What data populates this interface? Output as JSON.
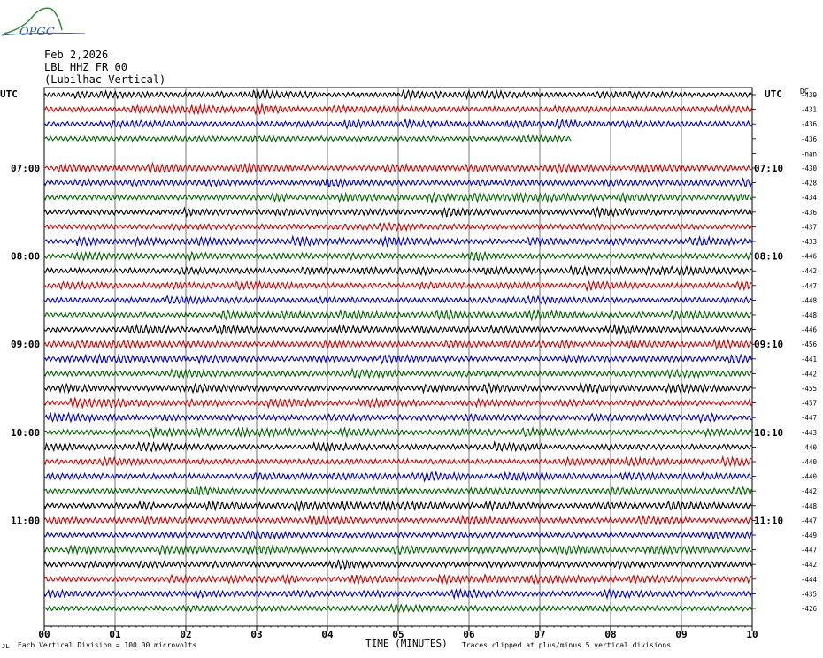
{
  "logo": {
    "text": "OPGC"
  },
  "header": {
    "date": "Feb 2,2026",
    "station": "LBL HHZ FR 00",
    "site": "(Lubilhac Vertical)"
  },
  "left_axis_title": "UTC",
  "right_axis_title": "UTC",
  "dc_header": "DC",
  "chart_data": {
    "type": "line",
    "title": "",
    "xlabel": "TIME (MINUTES)",
    "ylabel": "",
    "x_ticks": [
      "00",
      "01",
      "02",
      "03",
      "04",
      "05",
      "06",
      "07",
      "08",
      "09",
      "10"
    ],
    "xlim": [
      0,
      10
    ],
    "grid": true,
    "trace_colors": [
      "#000000",
      "#d00000",
      "#0000c8",
      "#006400"
    ],
    "left_time_labels": [
      "07:00",
      "08:00",
      "09:00",
      "10:00",
      "11:00"
    ],
    "right_time_labels": [
      "07:10",
      "08:10",
      "09:10",
      "10:10",
      "11:10"
    ],
    "dc_offsets": [
      "-439",
      "-431",
      "-436",
      "-436",
      "-nan",
      "-430",
      "-428",
      "-434",
      "-436",
      "-437",
      "-433",
      "-446",
      "-442",
      "-447",
      "-448",
      "-448",
      "-446",
      "-456",
      "-441",
      "-442",
      "-455",
      "-457",
      "-447",
      "-443",
      "-440",
      "-440",
      "-440",
      "-442",
      "-448",
      "-447",
      "-449",
      "-447",
      "-442",
      "-444",
      "-435",
      "-426"
    ],
    "traces": 36,
    "partial_trace": {
      "index": 3,
      "end_minute": 7.45
    },
    "blank_trace_index": 4
  },
  "footer": {
    "left": "Each Vertical Division =  100.00 microvolts",
    "right": "Traces clipped at plus/minus 5 vertical divisions",
    "mark": "JL"
  }
}
